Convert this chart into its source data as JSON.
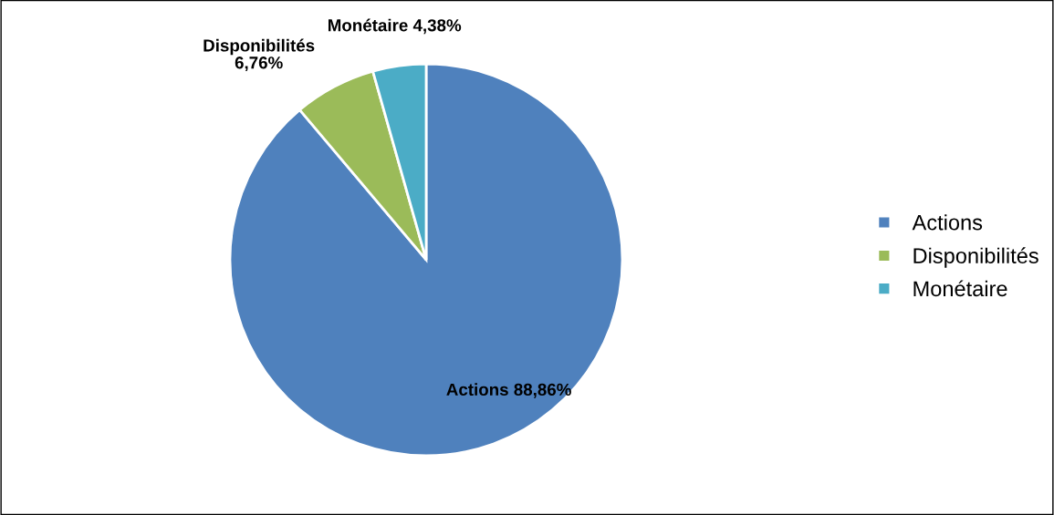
{
  "chart_data": {
    "type": "pie",
    "categories": [
      "Actions",
      "Disponibilités",
      "Monétaire"
    ],
    "values": [
      88.86,
      6.76,
      4.38
    ],
    "colors": [
      "#4f81bd",
      "#9bbb59",
      "#4bacc6"
    ],
    "value_labels": [
      "Actions 88,86%",
      "Disponibilités 6,76%",
      "Monétaire 4,38%"
    ],
    "legend": "right"
  }
}
